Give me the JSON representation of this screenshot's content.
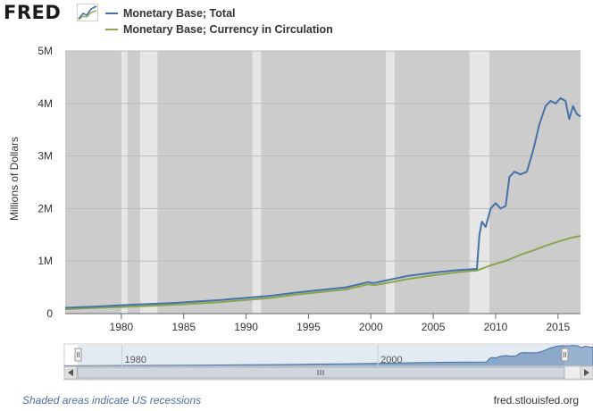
{
  "header": {
    "logo_text": "FRED",
    "logo_icon": "chart-line-icon"
  },
  "footer": {
    "note": "Shaded areas indicate US recessions",
    "source": "fred.stlouisfed.org"
  },
  "navigator": {
    "scroll_left_icon": "chevron-left-icon",
    "scroll_right_icon": "chevron-right-icon",
    "grip_icon": "grip-icon",
    "labels": [
      "1980",
      "2000"
    ]
  },
  "colors": {
    "series_total": "#4572a7",
    "series_currency": "#89a54e",
    "plot_background": "#cccccc",
    "recession_band": "#e6e6e6"
  },
  "chart_data": {
    "type": "line",
    "title": "",
    "xlabel": "",
    "ylabel": "Millions of Dollars",
    "xlim": [
      1975.5,
      2016.8
    ],
    "ylim": [
      0,
      5000000
    ],
    "y_ticks": [
      {
        "value": 0,
        "label": "0"
      },
      {
        "value": 1000000,
        "label": "1M"
      },
      {
        "value": 2000000,
        "label": "2M"
      },
      {
        "value": 3000000,
        "label": "3M"
      },
      {
        "value": 4000000,
        "label": "4M"
      },
      {
        "value": 5000000,
        "label": "5M"
      }
    ],
    "x_ticks": [
      {
        "value": 1980,
        "label": "1980"
      },
      {
        "value": 1985,
        "label": "1985"
      },
      {
        "value": 1990,
        "label": "1990"
      },
      {
        "value": 1995,
        "label": "1995"
      },
      {
        "value": 2000,
        "label": "2000"
      },
      {
        "value": 2005,
        "label": "2005"
      },
      {
        "value": 2010,
        "label": "2010"
      },
      {
        "value": 2015,
        "label": "2015"
      }
    ],
    "grid": true,
    "legend_position": "top",
    "recessions": [
      [
        1980.0,
        1980.5
      ],
      [
        1981.5,
        1982.9
      ],
      [
        1990.5,
        1991.2
      ],
      [
        2001.2,
        2001.9
      ],
      [
        2007.9,
        2009.5
      ]
    ],
    "series": [
      {
        "name": "Monetary Base; Total",
        "x": [
          1975.5,
          1978,
          1980,
          1982,
          1984,
          1986,
          1988,
          1990,
          1992,
          1994,
          1996,
          1998,
          1999.8,
          2000.2,
          2001,
          2003,
          2005,
          2007,
          2008.5,
          2008.7,
          2008.9,
          2009.2,
          2009.6,
          2010,
          2010.4,
          2010.8,
          2011.1,
          2011.5,
          2012,
          2012.5,
          2013,
          2013.5,
          2014,
          2014.4,
          2014.8,
          2015.2,
          2015.6,
          2015.9,
          2016.2,
          2016.5,
          2016.8
        ],
        "y": [
          110000,
          135000,
          160000,
          180000,
          200000,
          230000,
          260000,
          300000,
          340000,
          400000,
          450000,
          500000,
          600000,
          580000,
          620000,
          720000,
          780000,
          830000,
          850000,
          1500000,
          1750000,
          1650000,
          2000000,
          2100000,
          2000000,
          2050000,
          2600000,
          2700000,
          2650000,
          2700000,
          3100000,
          3600000,
          3950000,
          4050000,
          4000000,
          4100000,
          4050000,
          3700000,
          3950000,
          3800000,
          3750000
        ]
      },
      {
        "name": "Monetary Base; Currency in Circulation",
        "x": [
          1975.5,
          1978,
          1980,
          1982,
          1984,
          1986,
          1988,
          1990,
          1992,
          1994,
          1996,
          1998,
          1999.8,
          2000.2,
          2001,
          2003,
          2005,
          2007,
          2008.5,
          2009.5,
          2011,
          2012,
          2013,
          2014,
          2015,
          2016,
          2016.8
        ],
        "y": [
          85000,
          110000,
          125000,
          145000,
          165000,
          190000,
          220000,
          260000,
          300000,
          360000,
          410000,
          460000,
          560000,
          540000,
          570000,
          660000,
          730000,
          790000,
          820000,
          910000,
          1020000,
          1120000,
          1200000,
          1290000,
          1370000,
          1440000,
          1480000
        ]
      }
    ]
  }
}
